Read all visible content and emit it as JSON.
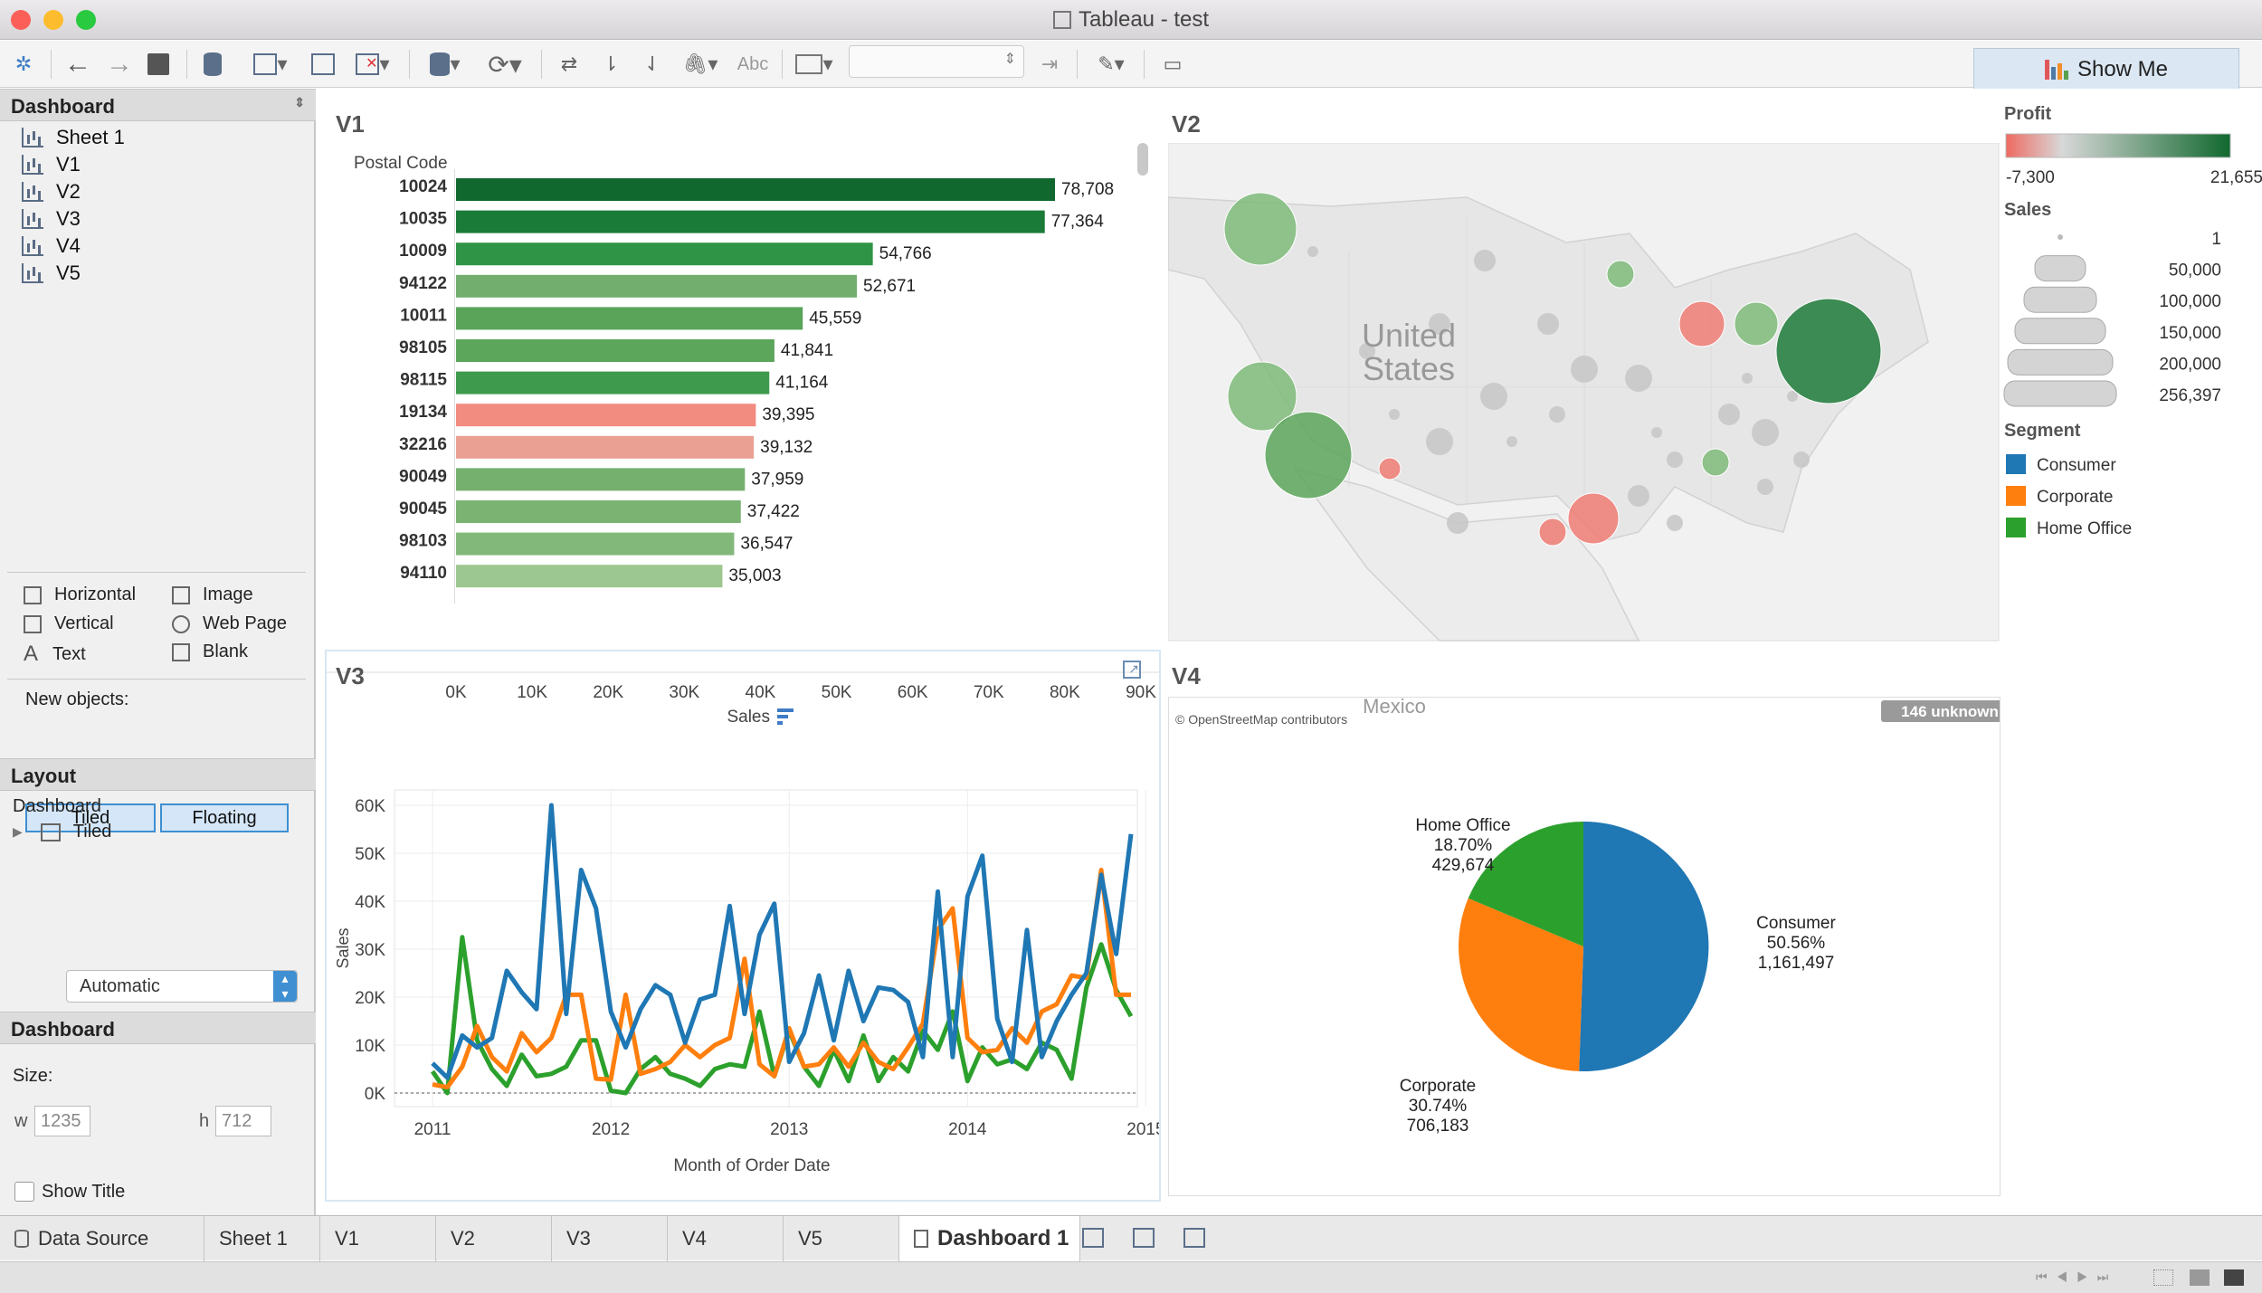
{
  "window": {
    "title": "Tableau - test"
  },
  "toolbar": {
    "show_me_label": "Show Me",
    "abc_label": "Abc"
  },
  "left_panel": {
    "dashboard_header": "Dashboard",
    "sheets": [
      "Sheet 1",
      "V1",
      "V2",
      "V3",
      "V4",
      "V5"
    ],
    "objects": [
      "Horizontal",
      "Image",
      "Vertical",
      "Web Page",
      "Text",
      "Blank"
    ],
    "new_objects_label": "New objects:",
    "tiled_label": "Tiled",
    "floating_label": "Floating",
    "layout_header": "Layout",
    "layout_dashboard": "Dashboard",
    "layout_tiled": "Tiled",
    "dashboard_section_header": "Dashboard",
    "size_label": "Size:",
    "size_value": "Automatic",
    "w_label": "w",
    "w_value": "1235",
    "h_label": "h",
    "h_value": "712",
    "show_title_label": "Show Title"
  },
  "bottom_tabs": [
    "Data Source",
    "Sheet 1",
    "V1",
    "V2",
    "V3",
    "V4",
    "V5",
    "Dashboard 1"
  ],
  "v1": {
    "title": "V1",
    "chart_data": {
      "type": "bar",
      "orientation": "horizontal",
      "ylabel": "Postal Code",
      "xlabel": "Sales",
      "categories": [
        "10024",
        "10035",
        "10009",
        "94122",
        "10011",
        "98105",
        "98115",
        "19134",
        "32216",
        "90049",
        "90045",
        "98103",
        "94110"
      ],
      "values": [
        78708,
        77364,
        54766,
        52671,
        45559,
        41841,
        41164,
        39395,
        39132,
        37959,
        37422,
        36547,
        35003
      ],
      "value_labels": [
        "78,708",
        "77,364",
        "54,766",
        "52,671",
        "45,559",
        "41,841",
        "41,164",
        "39,395",
        "39,132",
        "37,959",
        "37,422",
        "36,547",
        "35,003"
      ],
      "colors": [
        "#11682e",
        "#1a7a37",
        "#2f9446",
        "#72ae6d",
        "#5aa45a",
        "#5ca65c",
        "#3e9a4c",
        "#f28b80",
        "#eaa092",
        "#76b06f",
        "#7ab372",
        "#82b97a",
        "#9cc790"
      ],
      "xticks": [
        "0K",
        "10K",
        "20K",
        "30K",
        "40K",
        "50K",
        "60K",
        "70K",
        "80K",
        "90K"
      ],
      "xlim": [
        0,
        90000
      ]
    }
  },
  "v2": {
    "title": "V2",
    "country_label_1": "United",
    "country_label_2": "States",
    "mexico_label": "Mexico",
    "attribution": "© OpenStreetMap contributors",
    "unknown_badge": "146 unknown",
    "colors": {
      "green_dark": "#1e7a3a",
      "green_light": "#7fba7a",
      "red": "#ee7b74"
    }
  },
  "legend": {
    "profit_title": "Profit",
    "profit_min": "-7,300",
    "profit_max": "21,655",
    "sales_title": "Sales",
    "sales_values": [
      "1",
      "50,000",
      "100,000",
      "150,000",
      "200,000",
      "256,397"
    ],
    "segment_title": "Segment",
    "segments": [
      {
        "name": "Consumer",
        "color": "#1f77b4"
      },
      {
        "name": "Corporate",
        "color": "#ff7f0e"
      },
      {
        "name": "Home Office",
        "color": "#2ca02c"
      }
    ]
  },
  "v3": {
    "title": "V3",
    "chart_data": {
      "type": "line",
      "xlabel": "Month of Order Date",
      "ylabel": "Sales",
      "xticks": [
        "2011",
        "2012",
        "2013",
        "2014",
        "2015"
      ],
      "yticks": [
        "0K",
        "10K",
        "20K",
        "30K",
        "40K",
        "50K",
        "60K"
      ],
      "ylim": [
        0,
        60000
      ],
      "x_start": "2011-01",
      "x_end": "2014-12",
      "series": [
        {
          "name": "Consumer",
          "color": "#1f77b4",
          "values": [
            6200,
            3200,
            12000,
            9500,
            11500,
            25500,
            21000,
            17500,
            60000,
            16500,
            46500,
            38500,
            17000,
            9500,
            17500,
            22500,
            20500,
            10500,
            19500,
            20500,
            39000,
            16500,
            33000,
            39500,
            6500,
            12500,
            24500,
            11000,
            25500,
            15000,
            22000,
            21500,
            19000,
            7500,
            42000,
            7500,
            41000,
            49500,
            15500,
            6500,
            34000,
            7500,
            15000,
            20500,
            25000,
            45500,
            29000,
            54000
          ]
        },
        {
          "name": "Corporate",
          "color": "#ff7f0e",
          "values": [
            1800,
            1200,
            5500,
            14000,
            7500,
            4500,
            12500,
            8500,
            11500,
            20500,
            20500,
            3000,
            2800,
            20500,
            4000,
            5000,
            6500,
            10000,
            7500,
            10000,
            11500,
            28000,
            6000,
            3500,
            13500,
            5500,
            6000,
            9500,
            5500,
            10500,
            6500,
            5000,
            9500,
            14500,
            34000,
            38500,
            11500,
            8500,
            9000,
            13500,
            10500,
            17000,
            18500,
            24500,
            24000,
            46500,
            20500,
            20500
          ]
        },
        {
          "name": "Home Office",
          "color": "#2ca02c",
          "values": [
            4500,
            0,
            32500,
            11000,
            5000,
            1500,
            8000,
            3500,
            4000,
            5500,
            11000,
            11000,
            500,
            0,
            5000,
            7500,
            4000,
            3000,
            1500,
            5000,
            6000,
            5500,
            17000,
            3500,
            13000,
            5500,
            1500,
            9000,
            2500,
            12000,
            2500,
            7500,
            4500,
            13000,
            9000,
            17000,
            2500,
            9500,
            6000,
            7000,
            5000,
            10500,
            9000,
            3000,
            22000,
            31000,
            21500,
            16000
          ]
        }
      ]
    }
  },
  "v4": {
    "title": "V4",
    "chart_data": {
      "type": "pie",
      "slices": [
        {
          "name": "Consumer",
          "percent_label": "50.56%",
          "value_label": "1,161,497",
          "value": 1161497,
          "color": "#1f77b4"
        },
        {
          "name": "Corporate",
          "percent_label": "30.74%",
          "value_label": "706,183",
          "value": 706183,
          "color": "#ff7f0e"
        },
        {
          "name": "Home Office",
          "percent_label": "18.70%",
          "value_label": "429,674",
          "value": 429674,
          "color": "#2ca02c"
        }
      ]
    }
  }
}
